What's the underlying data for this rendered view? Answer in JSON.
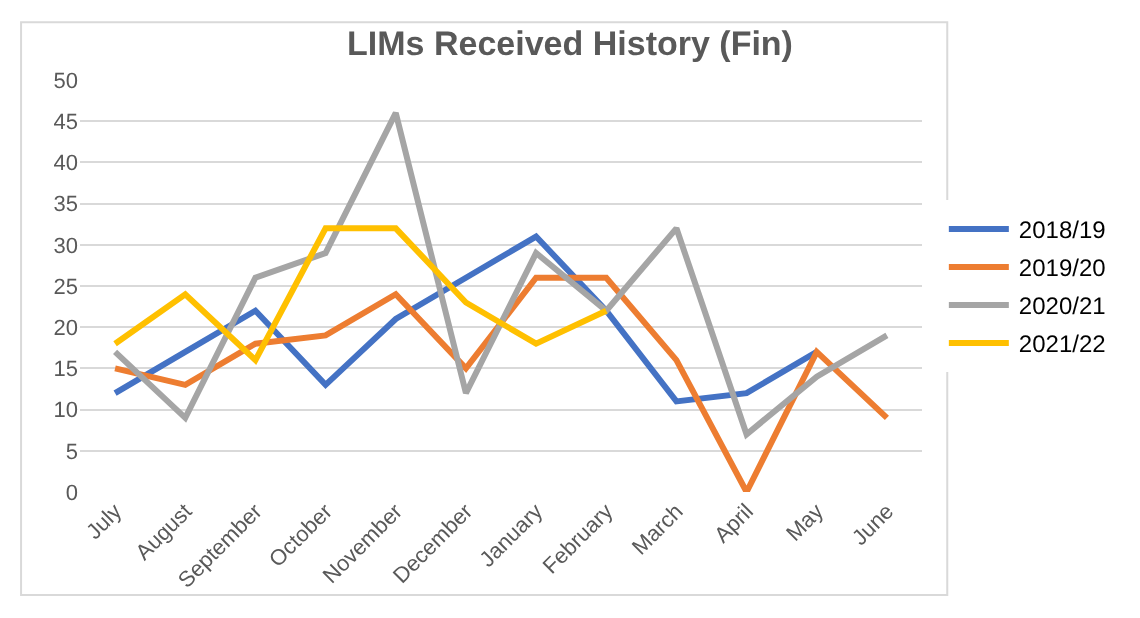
{
  "chart_data": {
    "type": "line",
    "title": "LIMs Received History (Fin)",
    "categories": [
      "July",
      "August",
      "September",
      "October",
      "November",
      "December",
      "January",
      "February",
      "March",
      "April",
      "May",
      "June"
    ],
    "series": [
      {
        "name": "2018/19",
        "color": "#4472c4",
        "values": [
          12,
          17,
          22,
          13,
          21,
          26,
          31,
          22,
          11,
          12,
          17,
          null
        ]
      },
      {
        "name": "2019/20",
        "color": "#ed7d31",
        "values": [
          15,
          13,
          18,
          19,
          24,
          15,
          26,
          26,
          16,
          0,
          17,
          9
        ]
      },
      {
        "name": "2020/21",
        "color": "#a5a5a5",
        "values": [
          17,
          9,
          26,
          29,
          46,
          12,
          29,
          22,
          32,
          7,
          14,
          19
        ]
      },
      {
        "name": "2021/22",
        "color": "#ffc000",
        "values": [
          18,
          24,
          16,
          32,
          32,
          23,
          18,
          22,
          null,
          null,
          null,
          null
        ]
      }
    ],
    "ylim": [
      0,
      50
    ],
    "yticks": [
      0,
      5,
      10,
      15,
      20,
      25,
      30,
      35,
      40,
      45,
      50
    ],
    "grid": "y",
    "legend": "right",
    "marker": "none",
    "line_style": "solid"
  }
}
